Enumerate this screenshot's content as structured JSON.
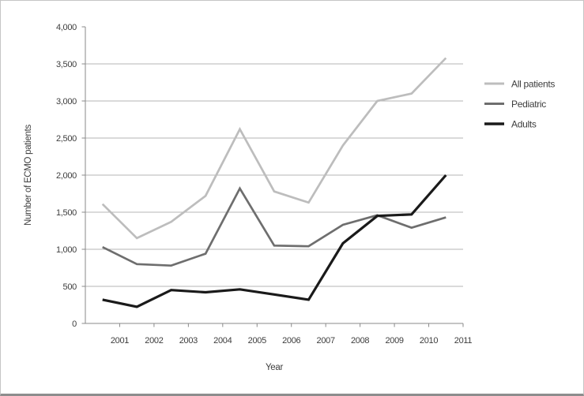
{
  "chart_data": {
    "type": "line",
    "title": "",
    "xlabel": "Year",
    "ylabel": "Number of ECMO patients",
    "x_tick_labels": [
      "2001",
      "2002",
      "2003",
      "2004",
      "2005",
      "2006",
      "2007",
      "2008",
      "2009",
      "2010",
      "2011"
    ],
    "y_tick_labels": [
      "0",
      "500",
      "1,000",
      "1,500",
      "2,000",
      "2,500",
      "3,000",
      "3,500",
      "4,000"
    ],
    "y_tick_step": 500,
    "ylim": [
      0,
      4000
    ],
    "grid": "horizontal",
    "legend_position": "right",
    "points_offset": "between-ticks",
    "series": [
      {
        "name": "All patients",
        "color": "#bdbdbd",
        "stroke_width": 2.7,
        "values": [
          1610,
          1150,
          1370,
          1720,
          2620,
          1780,
          1630,
          2400,
          3000,
          3100,
          3580
        ]
      },
      {
        "name": "Pediatric",
        "color": "#6e6e6e",
        "stroke_width": 2.7,
        "values": [
          1030,
          800,
          780,
          940,
          1820,
          1050,
          1040,
          1330,
          1460,
          1290,
          1430
        ]
      },
      {
        "name": "Adults",
        "color": "#1a1a1a",
        "stroke_width": 3.2,
        "values": [
          320,
          225,
          450,
          420,
          460,
          390,
          320,
          1080,
          1450,
          1470,
          2000
        ]
      }
    ]
  },
  "style": {
    "grid_color": "#b5b5b5",
    "axis_color": "#8a8a8a",
    "text_color": "#3d3d3d"
  }
}
